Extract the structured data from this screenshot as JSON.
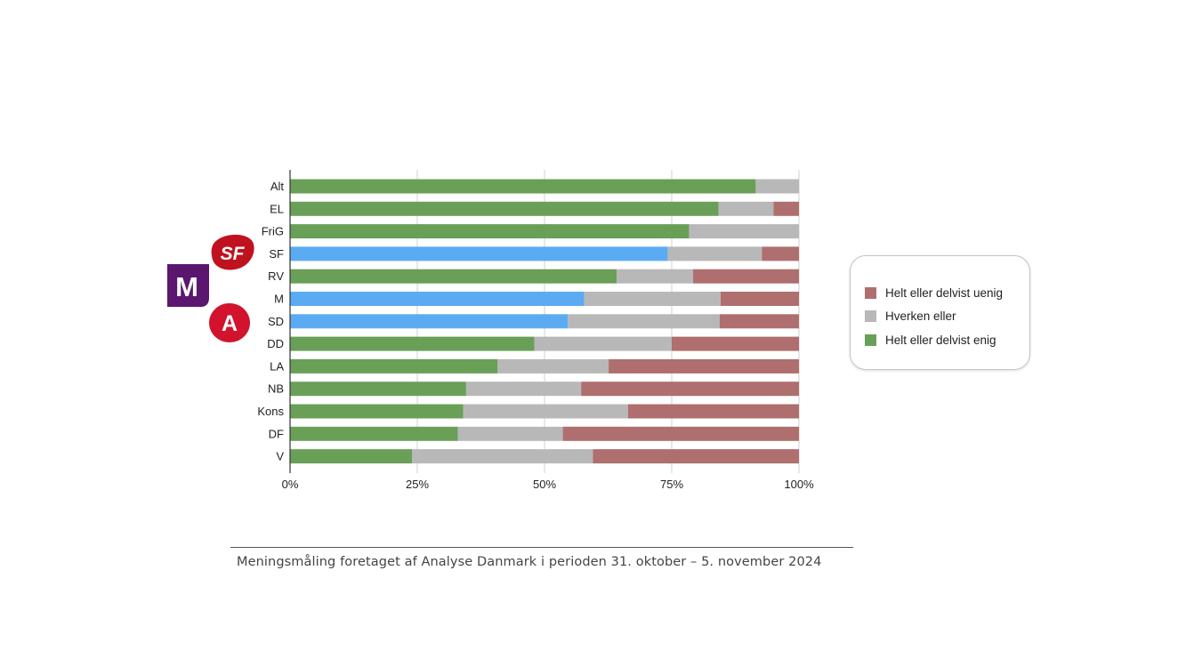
{
  "chart_data": {
    "type": "bar",
    "orientation": "horizontal",
    "stacked": true,
    "categories": [
      "Alt",
      "EL",
      "FriG",
      "SF",
      "RV",
      "M",
      "SD",
      "DD",
      "LA",
      "NB",
      "Kons",
      "DF",
      "V"
    ],
    "series": [
      {
        "name": "Helt eller delvist enig",
        "color": "#6a9f58",
        "values": [
          91.5,
          84.2,
          78.4,
          74.2,
          64.2,
          57.8,
          54.6,
          48.0,
          40.8,
          34.6,
          34.0,
          33.0,
          24.0
        ]
      },
      {
        "name": "Hverken eller",
        "color": "#b8b8b8",
        "values": [
          8.5,
          10.8,
          21.6,
          18.5,
          15.0,
          26.8,
          29.8,
          27.0,
          21.8,
          22.6,
          32.4,
          20.6,
          35.5
        ]
      },
      {
        "name": "Helt eller delvist uenig",
        "color": "#ae6f6e",
        "values": [
          0.0,
          5.0,
          0.0,
          7.3,
          20.8,
          15.4,
          15.6,
          25.0,
          37.4,
          42.8,
          33.6,
          46.4,
          40.5
        ]
      }
    ],
    "highlight": {
      "categories": [
        "SF",
        "M",
        "SD"
      ],
      "color": "#5aabf2"
    },
    "xticks": [
      "0%",
      "25%",
      "50%",
      "75%",
      "100%"
    ],
    "xlim": [
      0,
      100
    ],
    "grid": "vertical",
    "legend": {
      "placement": "right",
      "entries": [
        "Helt eller delvist uenig",
        "Hverken eller",
        "Helt eller delvist enig"
      ],
      "colors": [
        "#ae6f6e",
        "#b8b8b8",
        "#6a9f58"
      ]
    }
  },
  "logos": [
    {
      "name": "SF",
      "text": "SF",
      "color": "#c0121e"
    },
    {
      "name": "M",
      "text": "M",
      "color": "#5b1670"
    },
    {
      "name": "A",
      "text": "A",
      "color": "#d1132d"
    }
  ],
  "footer": {
    "caption": "Meningsmåling foretaget af Analyse Danmark i perioden 31. oktober – 5. november 2024"
  }
}
